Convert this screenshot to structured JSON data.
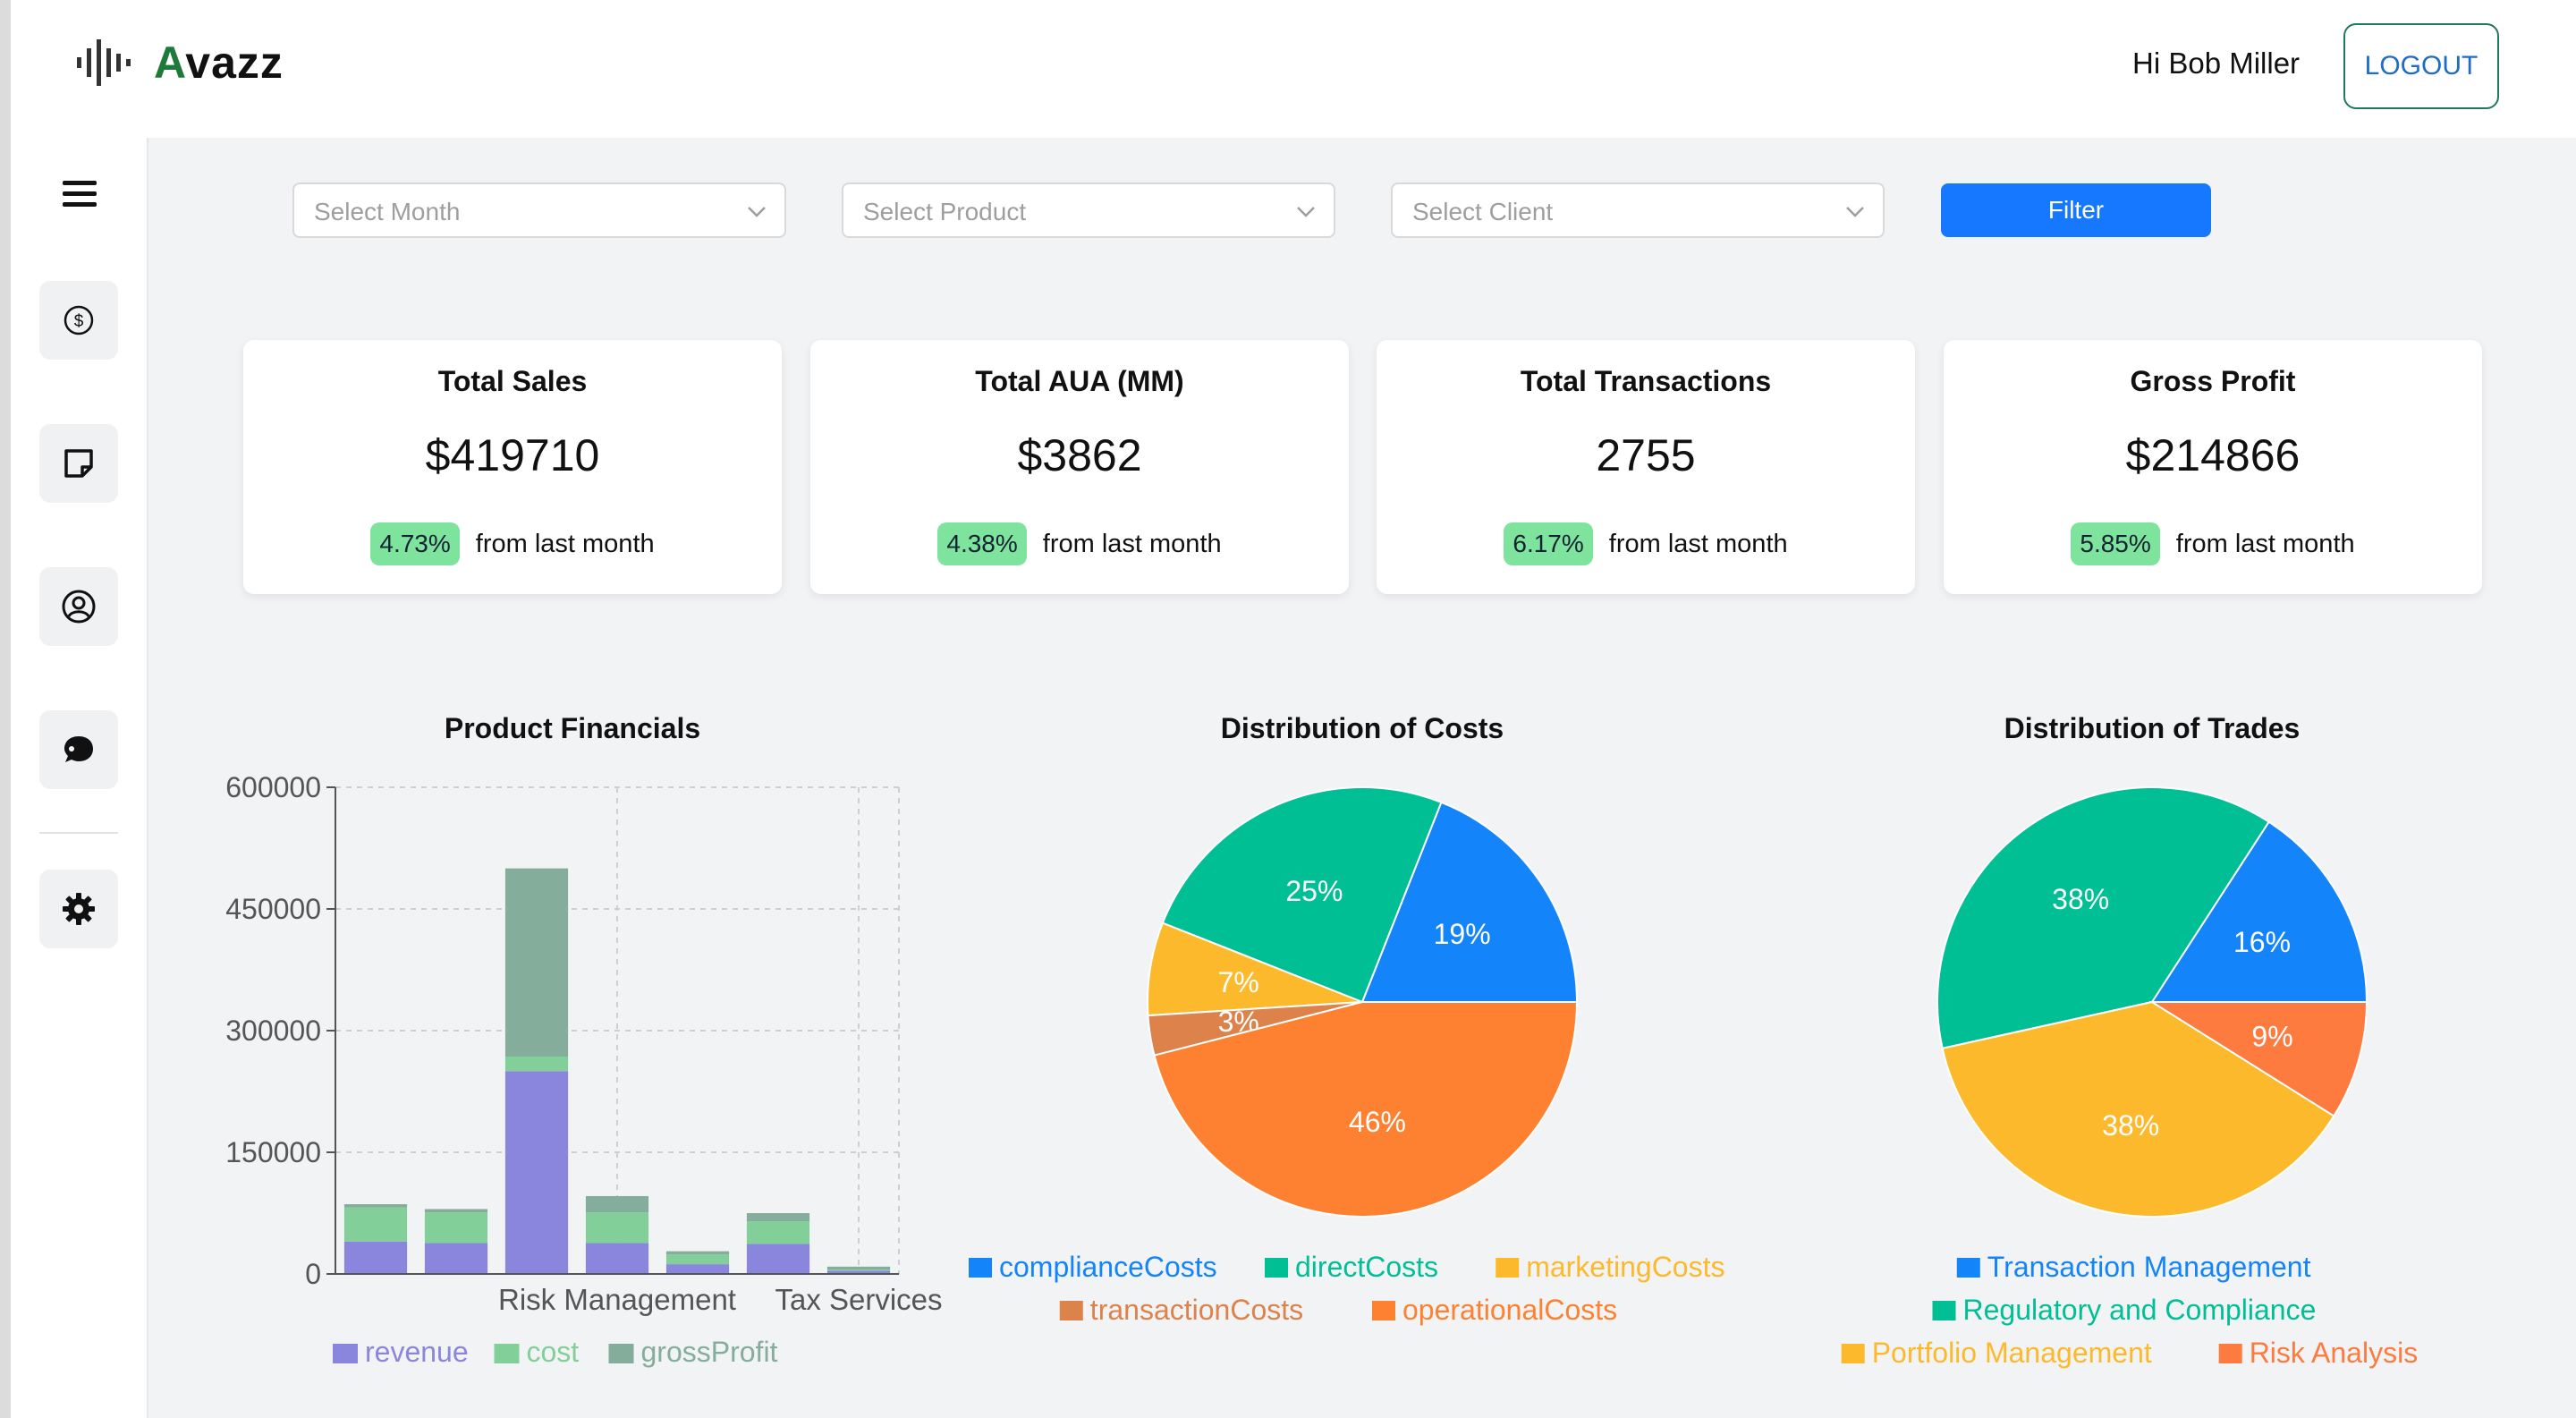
{
  "app": {
    "name_first": "A",
    "name_rest": "vazz"
  },
  "header": {
    "greeting": "Hi Bob Miller",
    "logout_label": "LOGOUT"
  },
  "sidebar": {
    "items": [
      {
        "name": "menu",
        "icon": "hamburger-icon"
      },
      {
        "name": "sales",
        "icon": "dollar-circle-icon"
      },
      {
        "name": "notes",
        "icon": "note-icon"
      },
      {
        "name": "profile",
        "icon": "user-circle-icon"
      },
      {
        "name": "chat",
        "icon": "chat-bubble-icon"
      },
      {
        "name": "settings",
        "icon": "gear-icon"
      }
    ]
  },
  "filters": {
    "month_placeholder": "Select Month",
    "product_placeholder": "Select Product",
    "client_placeholder": "Select Client",
    "filter_label": "Filter"
  },
  "cards": [
    {
      "title": "Total Sales",
      "value": "$419710",
      "change": "4.73%",
      "suffix": "from last month"
    },
    {
      "title": "Total AUA (MM)",
      "value": "$3862",
      "change": "4.38%",
      "suffix": "from last month"
    },
    {
      "title": "Total Transactions",
      "value": "2755",
      "change": "6.17%",
      "suffix": "from last month"
    },
    {
      "title": "Gross Profit",
      "value": "$214866",
      "change": "5.85%",
      "suffix": "from last month"
    }
  ],
  "colors": {
    "accent": "#1677ff",
    "badge": "#7ee39c",
    "logo_green": "#1e7a3a"
  },
  "chart_data": [
    {
      "type": "bar",
      "stacked": true,
      "title": "Product Financials",
      "categories": [
        "",
        "",
        "",
        "Risk Management",
        "",
        "",
        "Tax Services"
      ],
      "series": [
        {
          "name": "revenue",
          "color": "#8b86dd",
          "values": [
            40000,
            38000,
            250000,
            38000,
            12000,
            37000,
            4000
          ]
        },
        {
          "name": "cost",
          "color": "#82cf9a",
          "values": [
            42000,
            38000,
            18000,
            38000,
            12000,
            28000,
            1500
          ]
        },
        {
          "name": "grossProfit",
          "color": "#85ad9c",
          "values": [
            4000,
            4000,
            232000,
            20000,
            4000,
            10000,
            3500
          ]
        }
      ],
      "ylim": [
        0,
        600000
      ],
      "yticks": [
        0,
        150000,
        300000,
        450000,
        600000
      ],
      "grid": true,
      "legend_position": "bottom"
    },
    {
      "type": "pie",
      "title": "Distribution of Costs",
      "slices": [
        {
          "label": "complianceCosts",
          "value": 19,
          "color": "#1484fb"
        },
        {
          "label": "directCosts",
          "value": 25,
          "color": "#00bf95"
        },
        {
          "label": "marketingCosts",
          "value": 7,
          "color": "#fdb92c"
        },
        {
          "label": "transactionCosts",
          "value": 3,
          "color": "#dd824a"
        },
        {
          "label": "operationalCosts",
          "value": 46,
          "color": "#fd8130"
        }
      ],
      "display_labels": [
        "19%",
        "25%",
        "7%",
        "3%",
        "46%"
      ],
      "legend_position": "bottom"
    },
    {
      "type": "pie",
      "title": "Distribution of Trades",
      "slices": [
        {
          "label": "Transaction Management",
          "value": 16,
          "color": "#1484fb"
        },
        {
          "label": "Regulatory and Compliance",
          "value": 38,
          "color": "#00bf95"
        },
        {
          "label": "Portfolio Management",
          "value": 38,
          "color": "#fdb92c"
        },
        {
          "label": "Risk Analysis",
          "value": 9,
          "color": "#fd7b3f"
        }
      ],
      "display_labels": [
        "16%",
        "38%",
        "38%",
        "9%"
      ],
      "legend_position": "bottom"
    }
  ]
}
